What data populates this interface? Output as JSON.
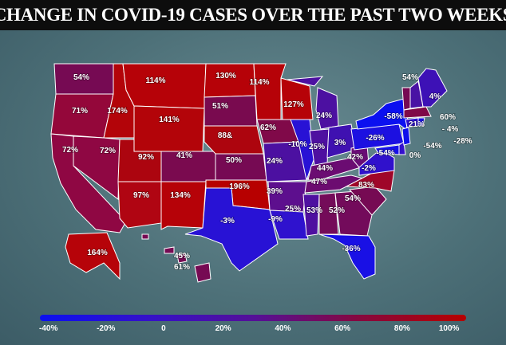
{
  "title": "CHANGE IN COVID-19 CASES OVER THE PAST TWO WEEKS",
  "colors": {
    "background": "#4d7078",
    "title_bar": "#0d0d0d",
    "low": "#0b10f0",
    "mid": "#541098",
    "high": "#b70000"
  },
  "states": [
    {
      "code": "WA",
      "label": "54%"
    },
    {
      "code": "OR",
      "label": "71%"
    },
    {
      "code": "CA",
      "label": "72%"
    },
    {
      "code": "ID",
      "label": "174%"
    },
    {
      "code": "NV",
      "label": "72%"
    },
    {
      "code": "MT",
      "label": "114%"
    },
    {
      "code": "WY",
      "label": "141%"
    },
    {
      "code": "UT",
      "label": "92%"
    },
    {
      "code": "AZ",
      "label": "97%"
    },
    {
      "code": "CO",
      "label": "41%"
    },
    {
      "code": "NM",
      "label": "134%"
    },
    {
      "code": "ND",
      "label": "130%"
    },
    {
      "code": "SD",
      "label": "51%"
    },
    {
      "code": "NE",
      "label": "88&"
    },
    {
      "code": "KS",
      "label": "50%"
    },
    {
      "code": "OK",
      "label": "196%"
    },
    {
      "code": "TX",
      "label": "-3%"
    },
    {
      "code": "MN",
      "label": "114%"
    },
    {
      "code": "IA",
      "label": "62%"
    },
    {
      "code": "MO",
      "label": "24%"
    },
    {
      "code": "AR",
      "label": "39%"
    },
    {
      "code": "LA",
      "label": "-9%"
    },
    {
      "code": "WI",
      "label": "127%"
    },
    {
      "code": "IL",
      "label": "-10%"
    },
    {
      "code": "MI",
      "label": "24%"
    },
    {
      "code": "IN",
      "label": "25%"
    },
    {
      "code": "OH",
      "label": "3%"
    },
    {
      "code": "KY",
      "label": "44%"
    },
    {
      "code": "TN",
      "label": "47%"
    },
    {
      "code": "MS",
      "label": "25%"
    },
    {
      "code": "AL",
      "label": "53%"
    },
    {
      "code": "GA",
      "label": "52%"
    },
    {
      "code": "FL",
      "label": "-36%"
    },
    {
      "code": "SC",
      "label": "54%"
    },
    {
      "code": "NC",
      "label": "83%"
    },
    {
      "code": "VA",
      "label": "-2%"
    },
    {
      "code": "WV",
      "label": "42%"
    },
    {
      "code": "PA",
      "label": "-26%"
    },
    {
      "code": "NY",
      "label": "-58%"
    },
    {
      "code": "VT",
      "label": "54%"
    },
    {
      "code": "NH",
      "label": "21%"
    },
    {
      "code": "ME",
      "label": "4%"
    },
    {
      "code": "MA",
      "label": "60%"
    },
    {
      "code": "CT",
      "label": "- 4%"
    },
    {
      "code": "RI",
      "label": "-28%"
    },
    {
      "code": "NJ",
      "label": "-54%"
    },
    {
      "code": "MD",
      "label": "-54%"
    },
    {
      "code": "DE",
      "label": "0%"
    },
    {
      "code": "AK",
      "label": "164%"
    },
    {
      "code": "HI_A",
      "label": "45%"
    },
    {
      "code": "HI_B",
      "label": "61%"
    }
  ],
  "legend": {
    "ticks": [
      "-40%",
      "-20%",
      "0",
      "20%",
      "40%",
      "60%",
      "80%",
      "100%"
    ]
  }
}
